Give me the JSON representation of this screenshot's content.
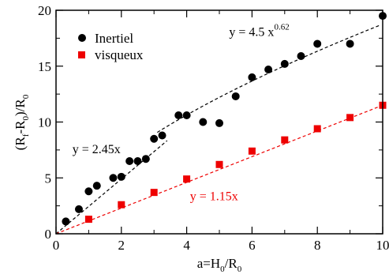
{
  "chart_data": {
    "type": "scatter",
    "title": "",
    "xlabel": {
      "base": "a=H",
      "sub1": "0",
      "mid": "/R",
      "sub2": "0"
    },
    "ylabel": {
      "open": "(R",
      "sub1": "f",
      "mid": "-R",
      "sub2": "0",
      "close": ")/R",
      "sub3": "0"
    },
    "xlim": [
      0,
      10
    ],
    "ylim": [
      0,
      20
    ],
    "x_ticks": [
      0,
      2,
      4,
      6,
      8,
      10
    ],
    "y_ticks": [
      0,
      5,
      10,
      15,
      20
    ],
    "x_tick_labels": [
      "0",
      "2",
      "4",
      "6",
      "8",
      "10"
    ],
    "y_tick_labels": [
      "0",
      "5",
      "10",
      "15",
      "20"
    ],
    "grid": false,
    "legend_position": "top-left",
    "series": [
      {
        "name": "Inertiel",
        "marker": "circle",
        "color": "#000000",
        "x": [
          0.3,
          0.7,
          1.0,
          1.25,
          1.75,
          2.0,
          2.25,
          2.5,
          2.75,
          3.0,
          3.25,
          3.75,
          4.0,
          4.5,
          5.0,
          5.5,
          6.0,
          6.5,
          7.0,
          7.5,
          8.0,
          9.0,
          10.0
        ],
        "y": [
          1.1,
          2.2,
          3.8,
          4.3,
          5.0,
          5.1,
          6.5,
          6.5,
          6.7,
          8.5,
          8.8,
          10.6,
          10.6,
          10.0,
          9.9,
          12.3,
          14.0,
          14.7,
          15.2,
          15.9,
          17.0,
          17.0,
          19.5
        ]
      },
      {
        "name": "visqueux",
        "marker": "square",
        "color": "#ee0000",
        "x": [
          1.0,
          2.0,
          3.0,
          4.0,
          5.0,
          6.0,
          7.0,
          8.0,
          9.0,
          10.0
        ],
        "y": [
          1.3,
          2.6,
          3.7,
          4.9,
          6.2,
          7.4,
          8.4,
          9.4,
          10.4,
          11.5
        ]
      }
    ],
    "fits": [
      {
        "label": "y = 2.45x",
        "coef": 2.45,
        "exp": 1,
        "x_range": [
          0,
          3.4
        ],
        "color": "#000000",
        "label_x": 0.5,
        "label_y": 7.2
      },
      {
        "label": "y = 4.5 x",
        "label_sup": "0.62",
        "coef": 4.5,
        "exp": 0.62,
        "x_range": [
          3.1,
          9.95
        ],
        "color": "#000000",
        "label_x": 5.3,
        "label_y": 17.7
      },
      {
        "label": "y = 1.15x",
        "coef": 1.15,
        "exp": 1,
        "x_range": [
          0,
          10
        ],
        "color": "#ee0000",
        "label_x": 4.1,
        "label_y": 3.0
      }
    ]
  }
}
